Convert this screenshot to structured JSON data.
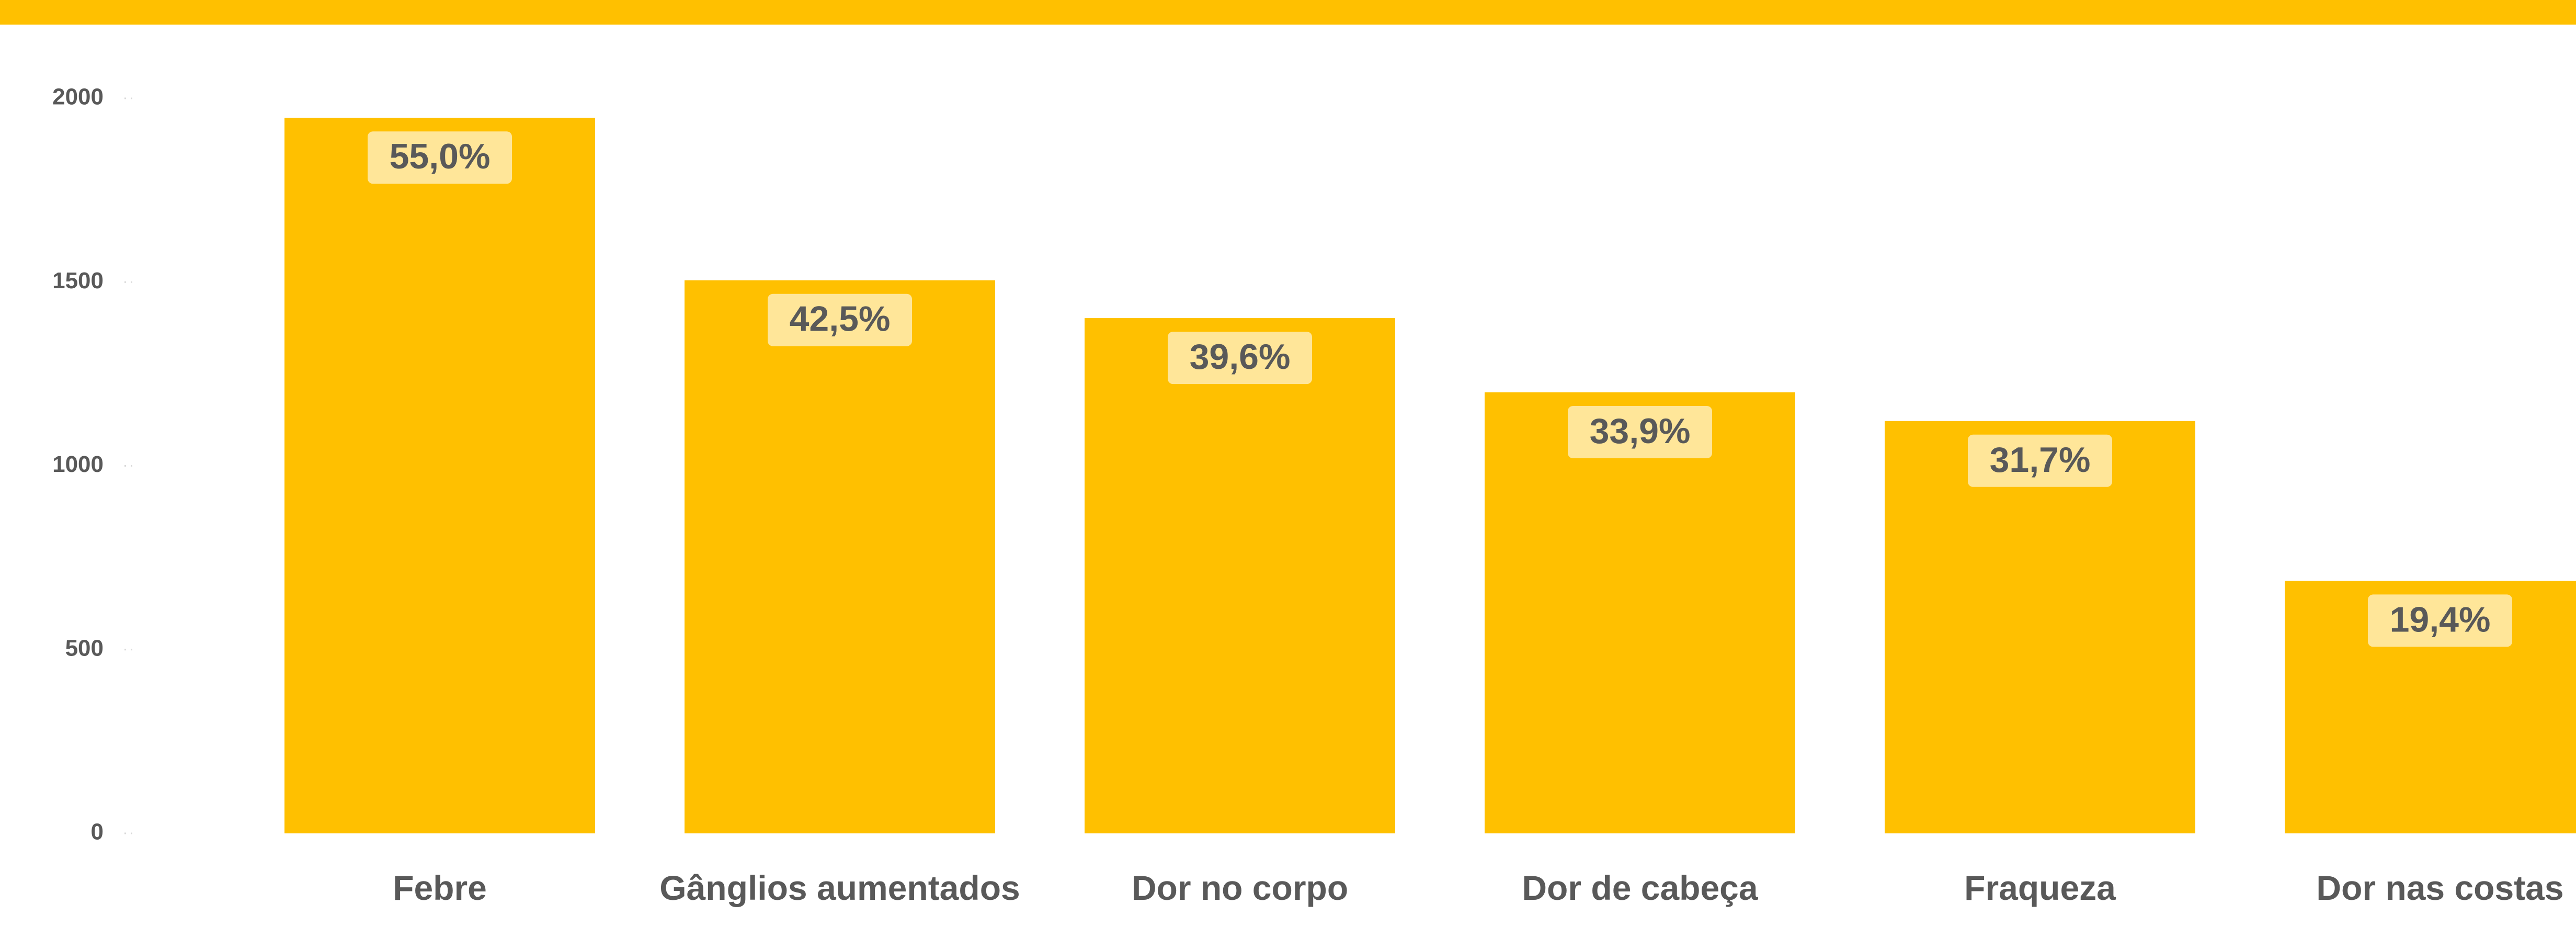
{
  "chart_data": {
    "type": "bar",
    "categories": [
      "Febre",
      "Gânglios aumentados",
      "Dor no corpo",
      "Dor de cabeça",
      "Fraqueza",
      "Dor nas costas"
    ],
    "values": [
      1947,
      1505,
      1402,
      1200,
      1122,
      687
    ],
    "labels": [
      "55,0%",
      "42,5%",
      "39,6%",
      "33,9%",
      "31,7%",
      "19,4%"
    ],
    "color": "#ffc000",
    "ylim": [
      0,
      2000
    ],
    "yticks": [
      0,
      500,
      1000,
      1500,
      2000
    ],
    "grid": false
  }
}
